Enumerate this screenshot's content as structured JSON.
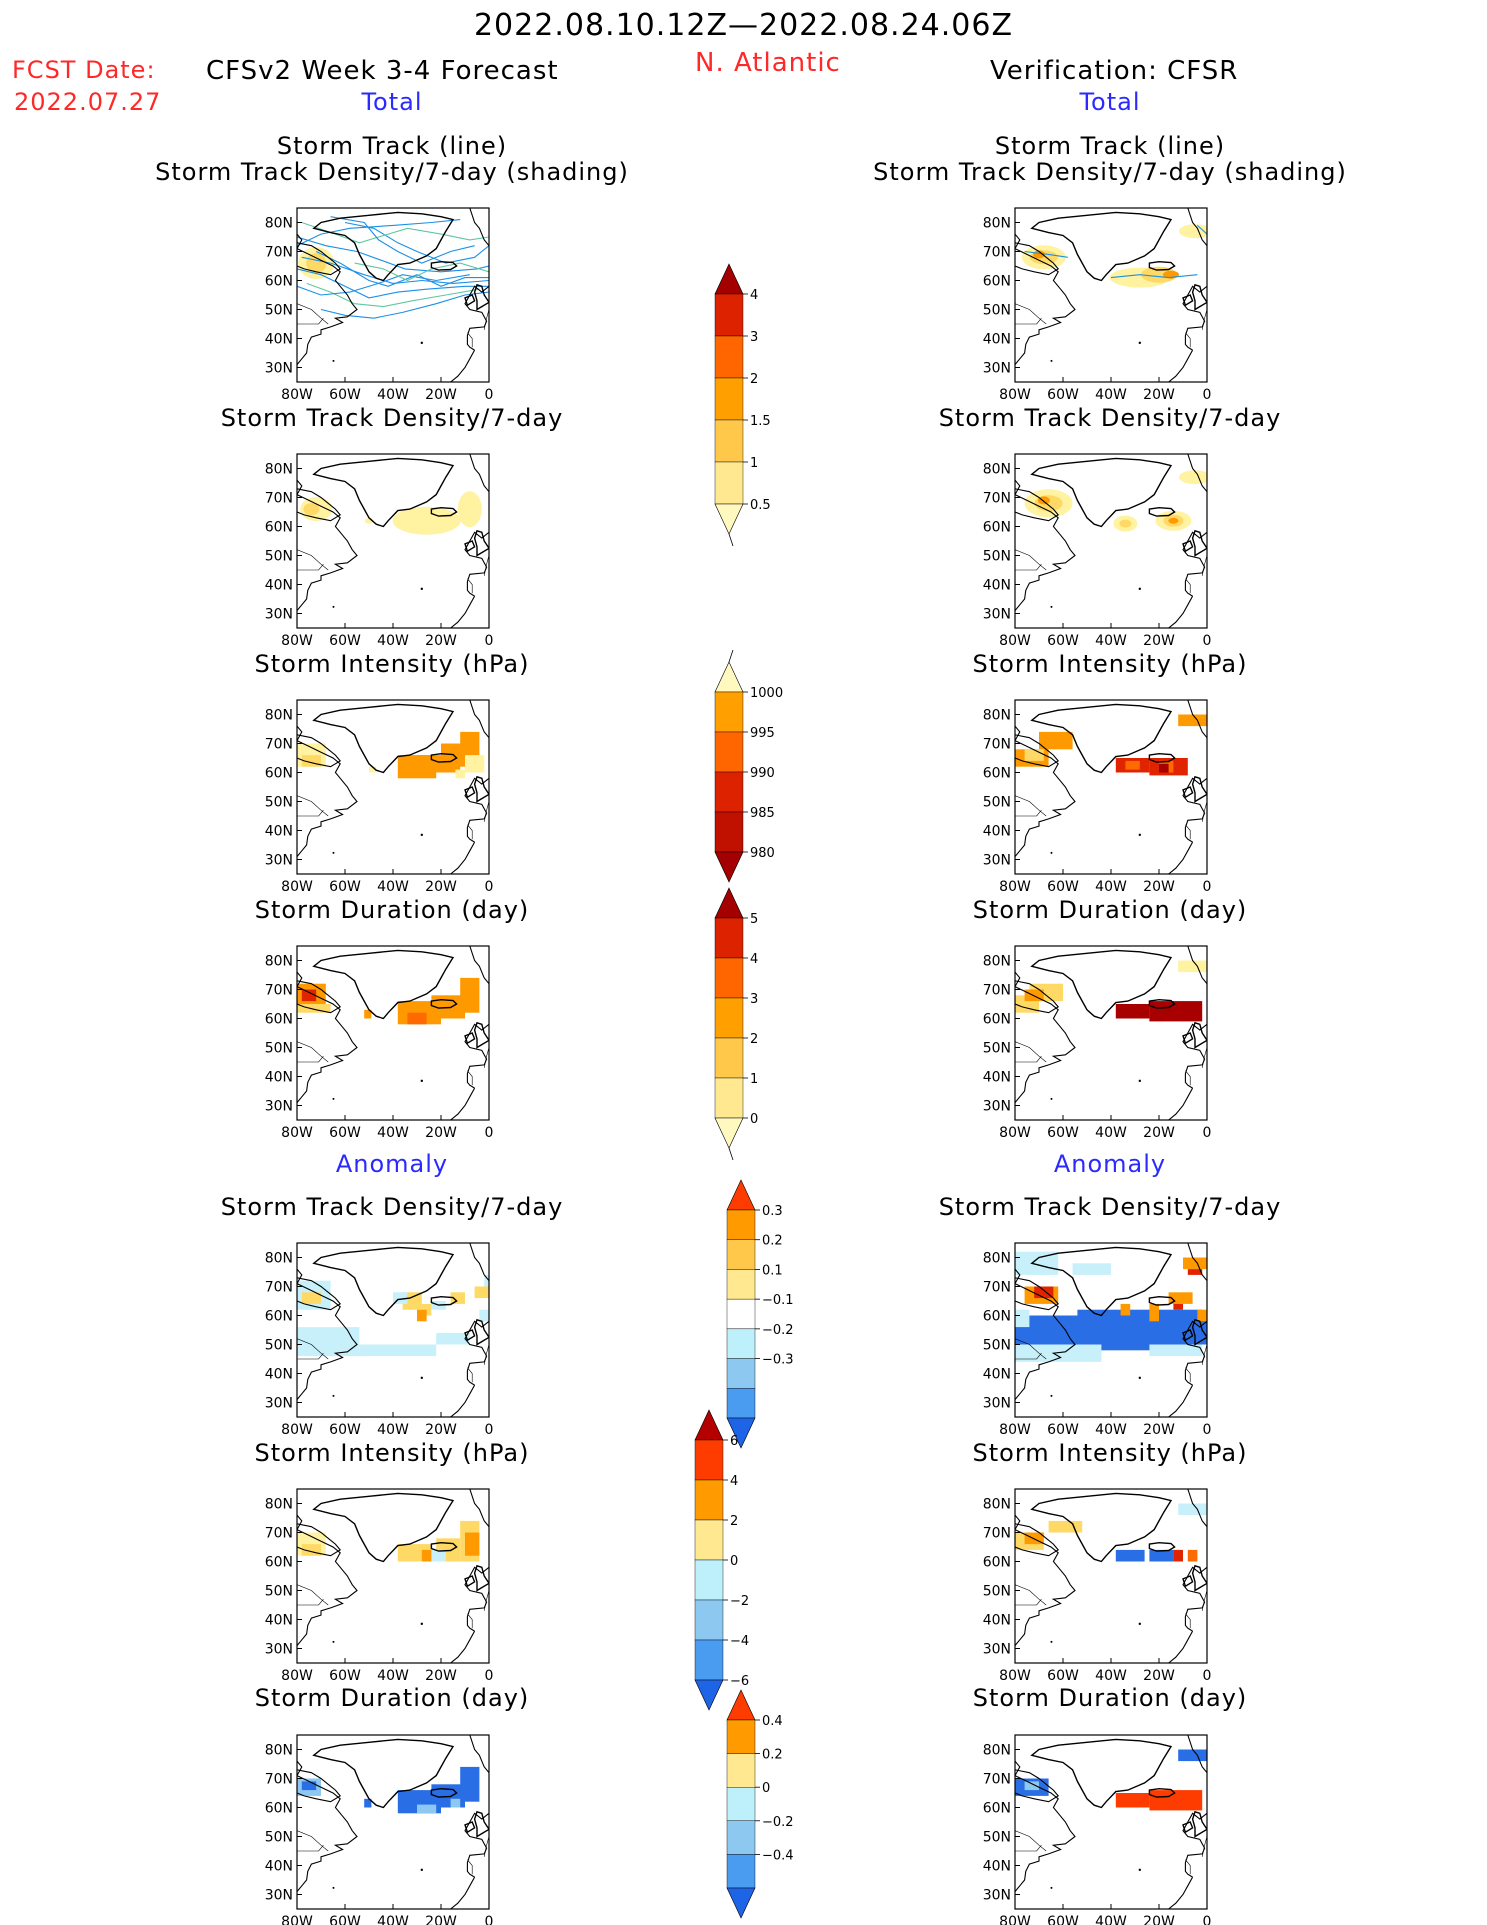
{
  "header": {
    "period": "2022.08.10.12Z—2022.08.24.06Z",
    "fcst_label": "FCST Date:",
    "fcst_date": "2022.07.27",
    "model": "CFSv2 Week 3-4 Forecast",
    "region": "N. Atlantic",
    "verification": "Verification: CFSR"
  },
  "sections": {
    "total": "Total",
    "anomaly": "Anomaly"
  },
  "panel_titles": {
    "track_line": "Storm Track (line)",
    "track_density_shading": "Storm Track Density/7-day (shading)",
    "track_density": "Storm Track Density/7-day",
    "intensity": "Storm Intensity (hPa)",
    "duration": "Storm Duration (day)"
  },
  "map_axes": {
    "lat_ticks": [
      "80N",
      "70N",
      "60N",
      "50N",
      "40N",
      "30N"
    ],
    "lon_ticks": [
      "80W",
      "60W",
      "40W",
      "20W",
      "0"
    ]
  },
  "colorbars": [
    {
      "id": "total-density",
      "labels": [
        "4",
        "3",
        "2",
        "1.5",
        "1",
        "0.5"
      ],
      "colors": [
        "#a50000",
        "#dd2200",
        "#ff6600",
        "#ffa000",
        "#ffc84a",
        "#ffe890",
        "#fff9c0"
      ]
    },
    {
      "id": "total-intensity",
      "labels": [
        "1000",
        "995",
        "990",
        "985",
        "980"
      ],
      "colors": [
        "#fff9c0",
        "#ffa000",
        "#ff6600",
        "#dd2200",
        "#c01000",
        "#a50000"
      ]
    },
    {
      "id": "total-duration",
      "labels": [
        "5",
        "4",
        "3",
        "2",
        "1",
        "0"
      ],
      "colors": [
        "#a50000",
        "#dd2200",
        "#ff6600",
        "#ffa000",
        "#ffc84a",
        "#ffe890",
        "#fff9c0"
      ]
    },
    {
      "id": "anomaly-density",
      "labels": [
        "0.3",
        "0.2",
        "0.1",
        "−0.1",
        "−0.2",
        "−0.3"
      ],
      "colors": [
        "#ff3c00",
        "#ff9a00",
        "#ffc84a",
        "#ffe890",
        "#ffffff",
        "#bdf0fa",
        "#8cc8f0",
        "#4a9cf0",
        "#1e64e6"
      ]
    },
    {
      "id": "anomaly-intensity",
      "labels": [
        "6",
        "4",
        "2",
        "0",
        "−2",
        "−4",
        "−6"
      ],
      "colors": [
        "#b40000",
        "#ff3c00",
        "#ff9a00",
        "#ffe890",
        "#bdf0fa",
        "#8cc8f0",
        "#4a9cf0",
        "#1e64e6"
      ]
    },
    {
      "id": "anomaly-duration",
      "labels": [
        "0.4",
        "0.2",
        "0",
        "−0.2",
        "−0.4"
      ],
      "colors": [
        "#ff3c00",
        "#ff9a00",
        "#ffe890",
        "#bdf0fa",
        "#8cc8f0",
        "#4a9cf0",
        "#1e64e6"
      ]
    }
  ],
  "palette": {
    "yellow_light": "#fff2a0",
    "yellow": "#ffd966",
    "orange": "#ff9900",
    "dark_orange": "#ff6a00",
    "red": "#e02400",
    "dark_red": "#a80000",
    "cyan": "#c8f0fa",
    "light_blue": "#8cc8f0",
    "blue": "#2a6ee6",
    "track_blue": "#1a90e8",
    "track_green": "#5ec8a0"
  }
}
